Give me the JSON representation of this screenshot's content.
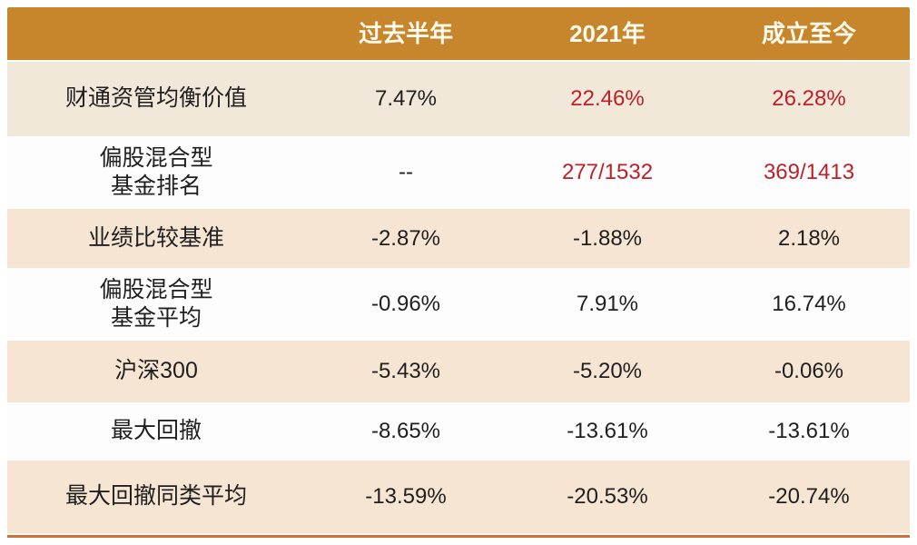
{
  "chart_data": {
    "type": "table",
    "title": "",
    "columns": [
      "",
      "过去半年",
      "2021年",
      "成立至今"
    ],
    "rows": [
      [
        "财通资管均衡价值",
        "7.47%",
        "22.46%",
        "26.28%"
      ],
      [
        "偏股混合型基金排名",
        "--",
        "277/1532",
        "369/1413"
      ],
      [
        "业绩比较基准",
        "-2.87%",
        "-1.88%",
        "2.18%"
      ],
      [
        "偏股混合型基金平均",
        "-0.96%",
        "7.91%",
        "16.74%"
      ],
      [
        "沪深300",
        "-5.43%",
        "-5.20%",
        "-0.06%"
      ],
      [
        "最大回撤",
        "-8.65%",
        "-13.61%",
        "-13.61%"
      ],
      [
        "最大回撤同类平均",
        "-13.59%",
        "-20.53%",
        "-20.74%"
      ]
    ],
    "layout_hints": "header row dark-gold with white bold text; data rows alternate beige/white; highlighted fund figures in red; thin orange rule under table"
  },
  "table": {
    "columns": [
      "",
      "过去半年",
      "2021年",
      "成立至今"
    ],
    "rows": [
      {
        "label": "财通资管均衡价值",
        "values": [
          "7.47%",
          "22.46%",
          "26.28%"
        ]
      },
      {
        "label": "偏股混合型\n基金排名",
        "values": [
          "--",
          "277/1532",
          "369/1413"
        ]
      },
      {
        "label": "业绩比较基准",
        "values": [
          "-2.87%",
          "-1.88%",
          "2.18%"
        ]
      },
      {
        "label": "偏股混合型\n基金平均",
        "values": [
          "-0.96%",
          "7.91%",
          "16.74%"
        ]
      },
      {
        "label": "沪深300",
        "values": [
          "-5.43%",
          "-5.20%",
          "-0.06%"
        ]
      },
      {
        "label": "最大回撤",
        "values": [
          "-8.65%",
          "-13.61%",
          "-13.61%"
        ]
      },
      {
        "label": "最大回撤同类平均",
        "values": [
          "-13.59%",
          "-20.53%",
          "-20.74%"
        ]
      }
    ]
  },
  "colors": {
    "header_bg": "#C7862B",
    "header_text": "#FFFAEE",
    "row_shade_first": "#F1E8DA",
    "row_shade": "#F6E5D2",
    "row_plain": "#FDFDFD",
    "text": "#1F1F1F",
    "highlight_red": "#BC2127",
    "bottom_rule": "#D3703A"
  }
}
